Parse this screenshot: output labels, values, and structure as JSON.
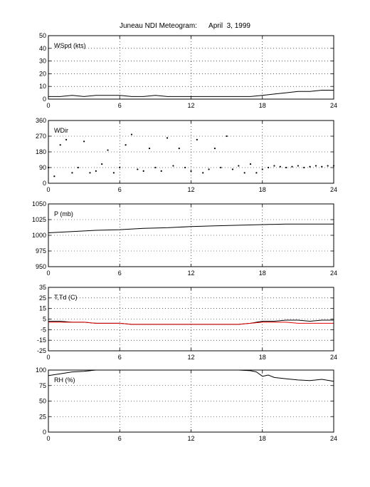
{
  "title": "Juneau NDI Meteogram:      April  3, 1999",
  "colors": {
    "series": "#000000",
    "dewpoint": "#e00000",
    "grid": "#000000",
    "frame": "#000000"
  },
  "chart_data": [
    {
      "type": "line",
      "label": "WSpd (kts)",
      "ylim": [
        0,
        50
      ],
      "yticks": [
        0,
        10,
        20,
        30,
        40,
        50
      ],
      "xlim": [
        0,
        24
      ],
      "xticks": [
        0,
        6,
        12,
        18,
        24
      ],
      "grid": true,
      "series": [
        {
          "x": [
            0,
            1,
            2,
            3,
            4,
            5,
            6,
            7,
            8,
            9,
            10,
            11,
            12,
            13,
            14,
            15,
            16,
            17,
            18,
            19,
            20,
            21,
            22,
            23,
            24
          ],
          "values": [
            2,
            2,
            3,
            2,
            3,
            3,
            3,
            2,
            2,
            3,
            2,
            2,
            2,
            2,
            2,
            2,
            2,
            2,
            3,
            4,
            5,
            6,
            6,
            7,
            7
          ]
        }
      ]
    },
    {
      "type": "scatter",
      "label": "WDir",
      "ylim": [
        0,
        360
      ],
      "yticks": [
        0,
        90,
        180,
        270,
        360
      ],
      "xlim": [
        0,
        24
      ],
      "xticks": [
        0,
        6,
        12,
        18,
        24
      ],
      "grid": true,
      "series": [
        {
          "x": [
            0,
            0.5,
            1,
            1.5,
            2,
            2.5,
            3,
            3.5,
            4,
            4.5,
            5,
            5.5,
            6,
            6.5,
            7,
            7.5,
            8,
            8.5,
            9,
            9.5,
            10,
            10.5,
            11,
            11.5,
            12,
            12.5,
            13,
            13.5,
            14,
            14.5,
            15,
            15.5,
            16,
            16.5,
            17,
            17.5,
            18,
            18.5,
            19,
            19.5,
            20,
            20.5,
            21,
            21.5,
            22,
            22.5,
            23,
            23.5,
            24
          ],
          "values": [
            90,
            40,
            220,
            250,
            60,
            90,
            240,
            60,
            70,
            110,
            190,
            60,
            90,
            220,
            280,
            80,
            70,
            200,
            90,
            70,
            260,
            100,
            200,
            90,
            70,
            250,
            60,
            80,
            200,
            90,
            270,
            80,
            100,
            60,
            110,
            60,
            80,
            90,
            100,
            95,
            90,
            95,
            100,
            90,
            95,
            100,
            95,
            100,
            100
          ]
        }
      ]
    },
    {
      "type": "line",
      "label": "P (mb)",
      "ylim": [
        950,
        1050
      ],
      "yticks": [
        950,
        975,
        1000,
        1025,
        1050
      ],
      "xlim": [
        0,
        24
      ],
      "xticks": [
        0,
        6,
        12,
        18,
        24
      ],
      "grid": true,
      "series": [
        {
          "x": [
            0,
            2,
            4,
            6,
            8,
            10,
            12,
            14,
            16,
            18,
            20,
            22,
            24
          ],
          "values": [
            1004,
            1006,
            1008,
            1009,
            1011,
            1012,
            1014,
            1015,
            1016,
            1017,
            1018,
            1018,
            1018
          ]
        }
      ]
    },
    {
      "type": "line",
      "label": "T,Td (C)",
      "ylim": [
        -25,
        35
      ],
      "yticks": [
        -25,
        -15,
        -5,
        5,
        15,
        25,
        35
      ],
      "xlim": [
        0,
        24
      ],
      "xticks": [
        0,
        6,
        12,
        18,
        24
      ],
      "grid": true,
      "series": [
        {
          "x": [
            0,
            1,
            2,
            3,
            4,
            5,
            6,
            7,
            8,
            9,
            10,
            11,
            12,
            13,
            14,
            15,
            16,
            17,
            18,
            19,
            20,
            21,
            22,
            23,
            24
          ],
          "values": [
            3,
            3,
            2,
            2,
            1,
            1,
            1,
            0,
            0,
            0,
            0,
            0,
            0,
            0,
            0,
            0,
            0,
            1,
            3,
            3,
            4,
            4,
            3,
            4,
            4
          ]
        },
        {
          "x": [
            0,
            1,
            2,
            3,
            4,
            5,
            6,
            7,
            8,
            9,
            10,
            11,
            12,
            13,
            14,
            15,
            16,
            17,
            18,
            19,
            20,
            21,
            22,
            23,
            24
          ],
          "values": [
            2,
            2,
            2,
            2,
            1,
            1,
            1,
            0,
            0,
            0,
            0,
            0,
            0,
            0,
            0,
            0,
            0,
            1,
            2,
            2,
            2,
            1,
            1,
            1,
            1
          ],
          "color": "#e00000"
        }
      ]
    },
    {
      "type": "line",
      "label": "RH (%)",
      "ylim": [
        0,
        100
      ],
      "yticks": [
        0,
        25,
        50,
        75,
        100
      ],
      "xlim": [
        0,
        24
      ],
      "xticks": [
        0,
        6,
        12,
        18,
        24
      ],
      "grid": true,
      "series": [
        {
          "x": [
            0,
            1,
            2,
            3,
            4,
            5,
            6,
            8,
            10,
            12,
            14,
            16,
            17,
            17.5,
            18,
            18.5,
            19,
            20,
            21,
            22,
            23,
            24
          ],
          "values": [
            91,
            94,
            97,
            98,
            100,
            100,
            100,
            100,
            100,
            100,
            100,
            100,
            99,
            97,
            90,
            92,
            88,
            86,
            84,
            83,
            85,
            82
          ]
        }
      ]
    }
  ]
}
